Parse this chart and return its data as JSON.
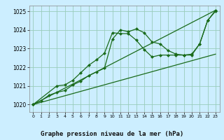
{
  "xlabel": "Graphe pression niveau de la mer (hPa)",
  "bg_color": "#cceeff",
  "grid_color": "#99ccbb",
  "line_color": "#1a6b1a",
  "xlim": [
    -0.5,
    23.5
  ],
  "ylim": [
    1019.6,
    1025.3
  ],
  "yticks": [
    1020,
    1021,
    1022,
    1023,
    1024,
    1025
  ],
  "xticks": [
    0,
    1,
    2,
    3,
    4,
    5,
    6,
    7,
    8,
    9,
    10,
    11,
    12,
    13,
    14,
    15,
    16,
    17,
    18,
    19,
    20,
    21,
    22,
    23
  ],
  "line1_x": [
    0,
    1,
    2,
    3,
    4,
    5,
    6,
    7,
    8,
    9,
    10,
    11,
    12,
    13,
    14,
    15,
    16,
    17,
    18,
    19,
    20,
    21,
    22,
    23
  ],
  "line1_y": [
    1020.0,
    1020.2,
    1020.5,
    1020.65,
    1020.75,
    1021.05,
    1021.25,
    1021.55,
    1021.75,
    1021.95,
    1023.5,
    1024.0,
    1023.9,
    1024.05,
    1023.85,
    1023.35,
    1023.25,
    1022.9,
    1022.7,
    1022.65,
    1022.65,
    1023.25,
    1024.5,
    1025.0
  ],
  "line2_x": [
    0,
    3,
    4,
    5,
    6,
    7,
    8,
    9,
    10,
    11,
    12,
    13,
    14,
    15,
    16,
    17,
    18,
    19,
    20,
    21,
    22,
    23
  ],
  "line2_y": [
    1020.0,
    1021.0,
    1021.05,
    1021.3,
    1021.7,
    1022.1,
    1022.4,
    1022.75,
    1023.85,
    1023.8,
    1023.8,
    1023.45,
    1022.95,
    1022.55,
    1022.65,
    1022.65,
    1022.65,
    1022.65,
    1022.7,
    1023.25,
    1024.5,
    1025.05
  ],
  "line3_x": [
    0,
    23
  ],
  "line3_y": [
    1020.0,
    1025.05
  ],
  "line4_x": [
    0,
    23
  ],
  "line4_y": [
    1020.0,
    1022.7
  ]
}
